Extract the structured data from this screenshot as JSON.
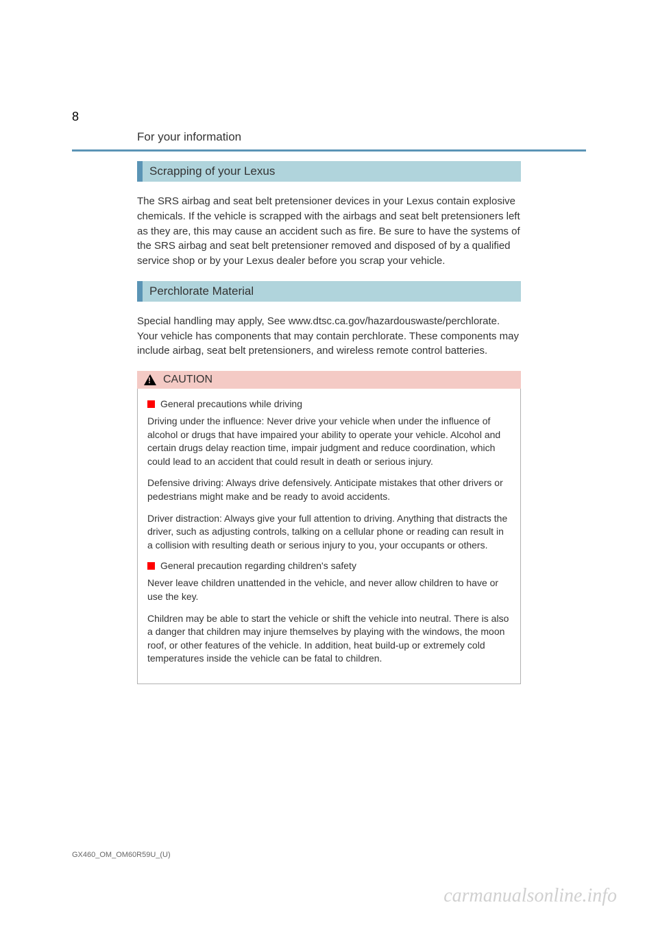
{
  "page": {
    "number": "8",
    "section_header": "For your information",
    "document_code": "GX460_OM_OM60R59U_(U)"
  },
  "sections": [
    {
      "heading": "Scrapping of your Lexus",
      "body": "The SRS airbag and seat belt pretensioner devices in your Lexus contain explosive chemicals. If the vehicle is scrapped with the airbags and seat belt pretensioners left as they are, this may cause an accident such as fire. Be sure to have the systems of the SRS airbag and seat belt pretensioner removed and disposed of by a qualified service shop or by your Lexus dealer before you scrap your vehicle."
    },
    {
      "heading": "Perchlorate Material",
      "body": "Special handling may apply, See www.dtsc.ca.gov/hazardouswaste/perchlorate. Your vehicle has components that may contain perchlorate. These components may include airbag, seat belt pretensioners, and wireless remote control batteries."
    }
  ],
  "caution": {
    "label": "CAUTION",
    "items": [
      {
        "title": "General precautions while driving",
        "paragraphs": [
          "Driving under the influence: Never drive your vehicle when under the influence of alcohol or drugs that have impaired your ability to operate your vehicle. Alcohol and certain drugs delay reaction time, impair judgment and reduce coordination, which could lead to an accident that could result in death or serious injury.",
          "Defensive driving: Always drive defensively. Anticipate mistakes that other drivers or pedestrians might make and be ready to avoid accidents.",
          "Driver distraction: Always give your full attention to driving. Anything that distracts the driver, such as adjusting controls, talking on a cellular phone or reading can result in a collision with resulting death or serious injury to you, your occupants or others."
        ]
      },
      {
        "title": "General precaution regarding children's safety",
        "paragraphs": [
          "Never leave children unattended in the vehicle, and never allow children to have or use the key.",
          "Children may be able to start the vehicle or shift the vehicle into neutral. There is also a danger that children may injure themselves by playing with the windows, the moon roof, or other features of the vehicle. In addition, heat build-up or extremely cold temperatures inside the vehicle can be fatal to children."
        ]
      }
    ]
  },
  "watermark": "carmanualsonline.info",
  "colors": {
    "blue_accent": "#5a94b5",
    "heading_bg": "#b0d4dc",
    "caution_bg": "#f4cac5",
    "red_marker": "#ff0000",
    "text": "#333333",
    "watermark_color": "#d0d0d0"
  }
}
